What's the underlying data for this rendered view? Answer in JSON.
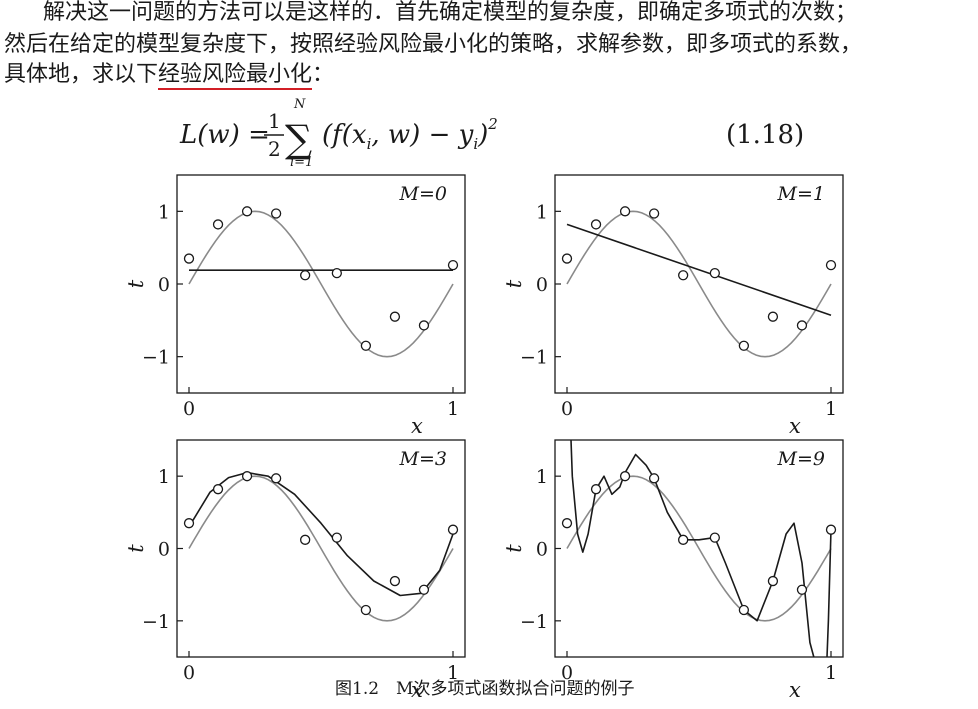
{
  "text": {
    "line1": "解决这一问题的方法可以是这样的．首先确定模型的复杂度，即确定多项式的次数；",
    "line2": "然后在给定的模型复杂度下，按照经验风险最小化的策略，求解参数，即多项式的系数，",
    "line3_prefix": "具体地，求以下",
    "line3_underlined": "经验风险最小化",
    "line3_suffix": "："
  },
  "formula": {
    "lhs": "L(w) =",
    "fraction_num": "1",
    "fraction_den": "2",
    "sum_sub": "i=1",
    "sum_sup": "N",
    "body": "(f(x",
    "xi_sub": "i",
    "body2": ", w) − y",
    "yi_sub": "i",
    "body3": ")",
    "power": "2",
    "equation_number": "(1.18)"
  },
  "colors": {
    "highlight_underline": "#d21f26",
    "true_curve": "#8a8a8a",
    "fit_curve": "#1a1a1a"
  },
  "chart_data": [
    {
      "type": "line",
      "title": "M=0",
      "xlabel": "x",
      "ylabel": "t",
      "xlim": [
        0,
        1
      ],
      "ylim": [
        -1.5,
        1.5
      ],
      "x_ticks": [
        "0",
        "1"
      ],
      "y_ticks": [
        "1",
        "0",
        "−1"
      ],
      "points": [
        [
          0,
          0.35
        ],
        [
          0.11,
          0.82
        ],
        [
          0.22,
          1.0
        ],
        [
          0.33,
          0.97
        ],
        [
          0.44,
          0.12
        ],
        [
          0.56,
          0.15
        ],
        [
          0.67,
          -0.85
        ],
        [
          0.78,
          -0.45
        ],
        [
          0.89,
          -0.57
        ],
        [
          1.0,
          0.26
        ]
      ],
      "fit": [
        [
          0,
          0.19
        ],
        [
          1,
          0.19
        ]
      ]
    },
    {
      "type": "line",
      "title": "M=1",
      "xlabel": "x",
      "ylabel": "t",
      "xlim": [
        0,
        1
      ],
      "ylim": [
        -1.5,
        1.5
      ],
      "x_ticks": [
        "0",
        "1"
      ],
      "y_ticks": [
        "1",
        "0",
        "−1"
      ],
      "points": [
        [
          0,
          0.35
        ],
        [
          0.11,
          0.82
        ],
        [
          0.22,
          1.0
        ],
        [
          0.33,
          0.97
        ],
        [
          0.44,
          0.12
        ],
        [
          0.56,
          0.15
        ],
        [
          0.67,
          -0.85
        ],
        [
          0.78,
          -0.45
        ],
        [
          0.89,
          -0.57
        ],
        [
          1.0,
          0.26
        ]
      ],
      "fit": [
        [
          0,
          0.82
        ],
        [
          1,
          -0.43
        ]
      ]
    },
    {
      "type": "line",
      "title": "M=3",
      "xlabel": "x",
      "ylabel": "t",
      "xlim": [
        0,
        1
      ],
      "ylim": [
        -1.5,
        1.5
      ],
      "x_ticks": [
        "0",
        "1"
      ],
      "y_ticks": [
        "1",
        "0",
        "−1"
      ],
      "points": [
        [
          0,
          0.35
        ],
        [
          0.11,
          0.82
        ],
        [
          0.22,
          1.0
        ],
        [
          0.33,
          0.97
        ],
        [
          0.44,
          0.12
        ],
        [
          0.56,
          0.15
        ],
        [
          0.67,
          -0.85
        ],
        [
          0.78,
          -0.45
        ],
        [
          0.89,
          -0.57
        ],
        [
          1.0,
          0.26
        ]
      ],
      "fit": [
        [
          0,
          0.3
        ],
        [
          0.08,
          0.78
        ],
        [
          0.15,
          0.98
        ],
        [
          0.22,
          1.05
        ],
        [
          0.3,
          1.0
        ],
        [
          0.4,
          0.75
        ],
        [
          0.5,
          0.35
        ],
        [
          0.6,
          -0.1
        ],
        [
          0.7,
          -0.45
        ],
        [
          0.8,
          -0.65
        ],
        [
          0.88,
          -0.62
        ],
        [
          0.95,
          -0.3
        ],
        [
          1.0,
          0.2
        ]
      ]
    },
    {
      "type": "line",
      "title": "M=9",
      "xlabel": "x",
      "ylabel": "t",
      "xlim": [
        0,
        1
      ],
      "ylim": [
        -1.5,
        1.5
      ],
      "x_ticks": [
        "0",
        "1"
      ],
      "y_ticks": [
        "1",
        "0",
        "−1"
      ],
      "points": [
        [
          0,
          0.35
        ],
        [
          0.11,
          0.82
        ],
        [
          0.22,
          1.0
        ],
        [
          0.33,
          0.97
        ],
        [
          0.44,
          0.12
        ],
        [
          0.56,
          0.15
        ],
        [
          0.67,
          -0.85
        ],
        [
          0.78,
          -0.45
        ],
        [
          0.89,
          -0.57
        ],
        [
          1.0,
          0.26
        ]
      ],
      "fit": [
        [
          0.015,
          1.5
        ],
        [
          0.02,
          1.0
        ],
        [
          0.04,
          0.2
        ],
        [
          0.06,
          -0.05
        ],
        [
          0.08,
          0.2
        ],
        [
          0.11,
          0.82
        ],
        [
          0.14,
          1.0
        ],
        [
          0.17,
          0.75
        ],
        [
          0.2,
          0.85
        ],
        [
          0.22,
          1.05
        ],
        [
          0.26,
          1.3
        ],
        [
          0.3,
          1.15
        ],
        [
          0.33,
          0.97
        ],
        [
          0.38,
          0.5
        ],
        [
          0.44,
          0.12
        ],
        [
          0.5,
          0.12
        ],
        [
          0.56,
          0.15
        ],
        [
          0.6,
          -0.2
        ],
        [
          0.67,
          -0.85
        ],
        [
          0.72,
          -1.0
        ],
        [
          0.78,
          -0.45
        ],
        [
          0.83,
          0.2
        ],
        [
          0.86,
          0.35
        ],
        [
          0.89,
          -0.2
        ],
        [
          0.92,
          -1.3
        ],
        [
          0.935,
          -1.5
        ]
      ],
      "fit_tail": [
        [
          0.985,
          -1.5
        ],
        [
          0.99,
          -1.0
        ],
        [
          1.0,
          0.26
        ]
      ]
    }
  ],
  "caption": "图1.2　M次多项式函数拟合问题的例子"
}
